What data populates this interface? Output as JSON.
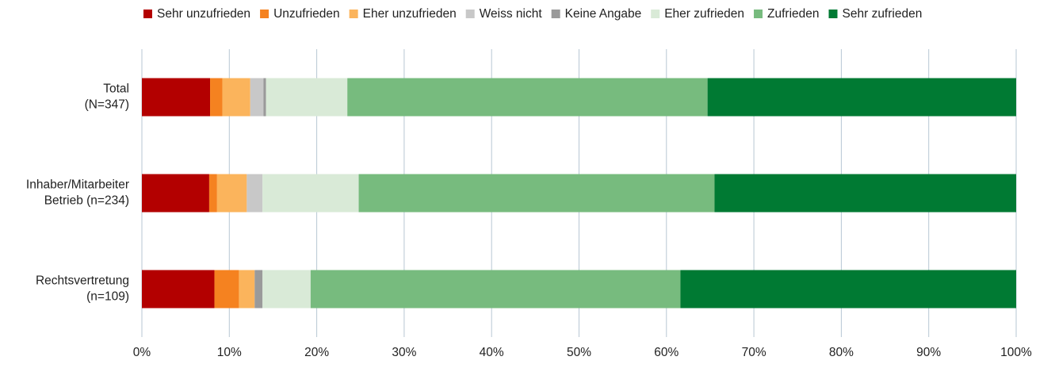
{
  "chart_data": {
    "type": "stacked_barh",
    "categories": [
      "Total\n(N=347)",
      "Inhaber/Mitarbeiter\nBetrieb (n=234)",
      "Rechtsvertretung\n(n=109)"
    ],
    "series": [
      {
        "name": "Sehr unzufrieden",
        "color": "#b30000",
        "values": [
          7.8,
          7.7,
          8.3
        ]
      },
      {
        "name": "Unzufrieden",
        "color": "#f58220",
        "values": [
          1.4,
          0.9,
          2.8
        ]
      },
      {
        "name": "Eher unzufrieden",
        "color": "#fbb45c",
        "values": [
          3.2,
          3.4,
          1.8
        ]
      },
      {
        "name": "Weiss nicht",
        "color": "#c8c8c8",
        "values": [
          1.5,
          1.8,
          0
        ]
      },
      {
        "name": "Keine Angabe",
        "color": "#9a9a9a",
        "values": [
          0.3,
          0,
          0.9
        ]
      },
      {
        "name": "Eher zufrieden",
        "color": "#d9ead7",
        "values": [
          9.3,
          11.0,
          5.5
        ]
      },
      {
        "name": "Zufrieden",
        "color": "#77bb7e",
        "values": [
          41.2,
          40.7,
          42.3
        ]
      },
      {
        "name": "Sehr zufrieden",
        "color": "#007a33",
        "values": [
          35.3,
          34.5,
          38.4
        ]
      }
    ],
    "xlim": [
      0,
      100
    ],
    "xticks": [
      {
        "value": 0,
        "label": "0%"
      },
      {
        "value": 10,
        "label": "10%"
      },
      {
        "value": 20,
        "label": "20%"
      },
      {
        "value": 30,
        "label": "30%"
      },
      {
        "value": 40,
        "label": "40%"
      },
      {
        "value": 50,
        "label": "50%"
      },
      {
        "value": 60,
        "label": "60%"
      },
      {
        "value": 70,
        "label": "70%"
      },
      {
        "value": 80,
        "label": "80%"
      },
      {
        "value": 90,
        "label": "90%"
      },
      {
        "value": 100,
        "label": "100%"
      }
    ],
    "grid": true,
    "legend": "top"
  }
}
